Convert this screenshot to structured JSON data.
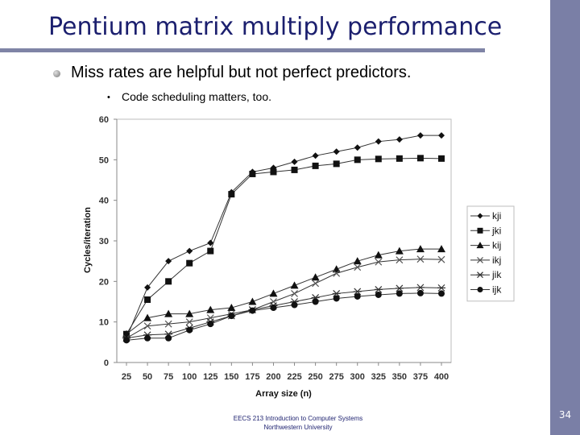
{
  "slide": {
    "title": "Pentium matrix multiply performance",
    "bullet": "Miss rates are helpful but not perfect predictors.",
    "sub_bullet": "Code scheduling matters, too.",
    "footer_line1": "EECS 213 Introduction to Computer Systems",
    "footer_line2": "Northwestern University",
    "page_number": "34",
    "colors": {
      "title": "#1b1f6e",
      "sidebar": "#7a7fa6",
      "rule": "#7f84a6"
    }
  },
  "chart_data": {
    "type": "line",
    "title": "",
    "xlabel": "Array size (n)",
    "ylabel": "Cycles/iteration",
    "x": [
      25,
      50,
      75,
      100,
      125,
      150,
      175,
      200,
      225,
      250,
      275,
      300,
      325,
      350,
      375,
      400
    ],
    "ylim": [
      0,
      60
    ],
    "yticks": [
      0,
      10,
      20,
      30,
      40,
      50,
      60
    ],
    "legend_position": "right",
    "series": [
      {
        "name": "kji",
        "marker": "diamond",
        "values": [
          6,
          18.5,
          25,
          27.5,
          29.5,
          42,
          47,
          48,
          49.5,
          51,
          52,
          53,
          54.5,
          55,
          56,
          56
        ]
      },
      {
        "name": "jki",
        "marker": "square",
        "values": [
          7,
          15.5,
          20,
          24.5,
          27.5,
          41.5,
          46.5,
          47,
          47.5,
          48.5,
          49,
          50,
          50.2,
          50.3,
          50.4,
          50.3
        ]
      },
      {
        "name": "kij",
        "marker": "triangle",
        "values": [
          7,
          11,
          12,
          12,
          13,
          13.5,
          15,
          17,
          19,
          21,
          23,
          25,
          26.5,
          27.5,
          28,
          28
        ]
      },
      {
        "name": "ikj",
        "marker": "x",
        "values": [
          6,
          9,
          9.5,
          10,
          11,
          12,
          13,
          15,
          17,
          19.5,
          22,
          23.5,
          24.8,
          25.3,
          25.5,
          25.4
        ]
      },
      {
        "name": "jik",
        "marker": "asterisk",
        "values": [
          6,
          6.8,
          7,
          8.5,
          10,
          11.5,
          13,
          14,
          15,
          16,
          17,
          17.5,
          18,
          18.3,
          18.5,
          18.4
        ]
      },
      {
        "name": "ijk",
        "marker": "circle",
        "values": [
          5.5,
          6,
          6,
          8,
          9.5,
          11.5,
          12.8,
          13.5,
          14.2,
          15,
          15.8,
          16.3,
          16.7,
          17,
          17.1,
          17
        ]
      }
    ]
  }
}
